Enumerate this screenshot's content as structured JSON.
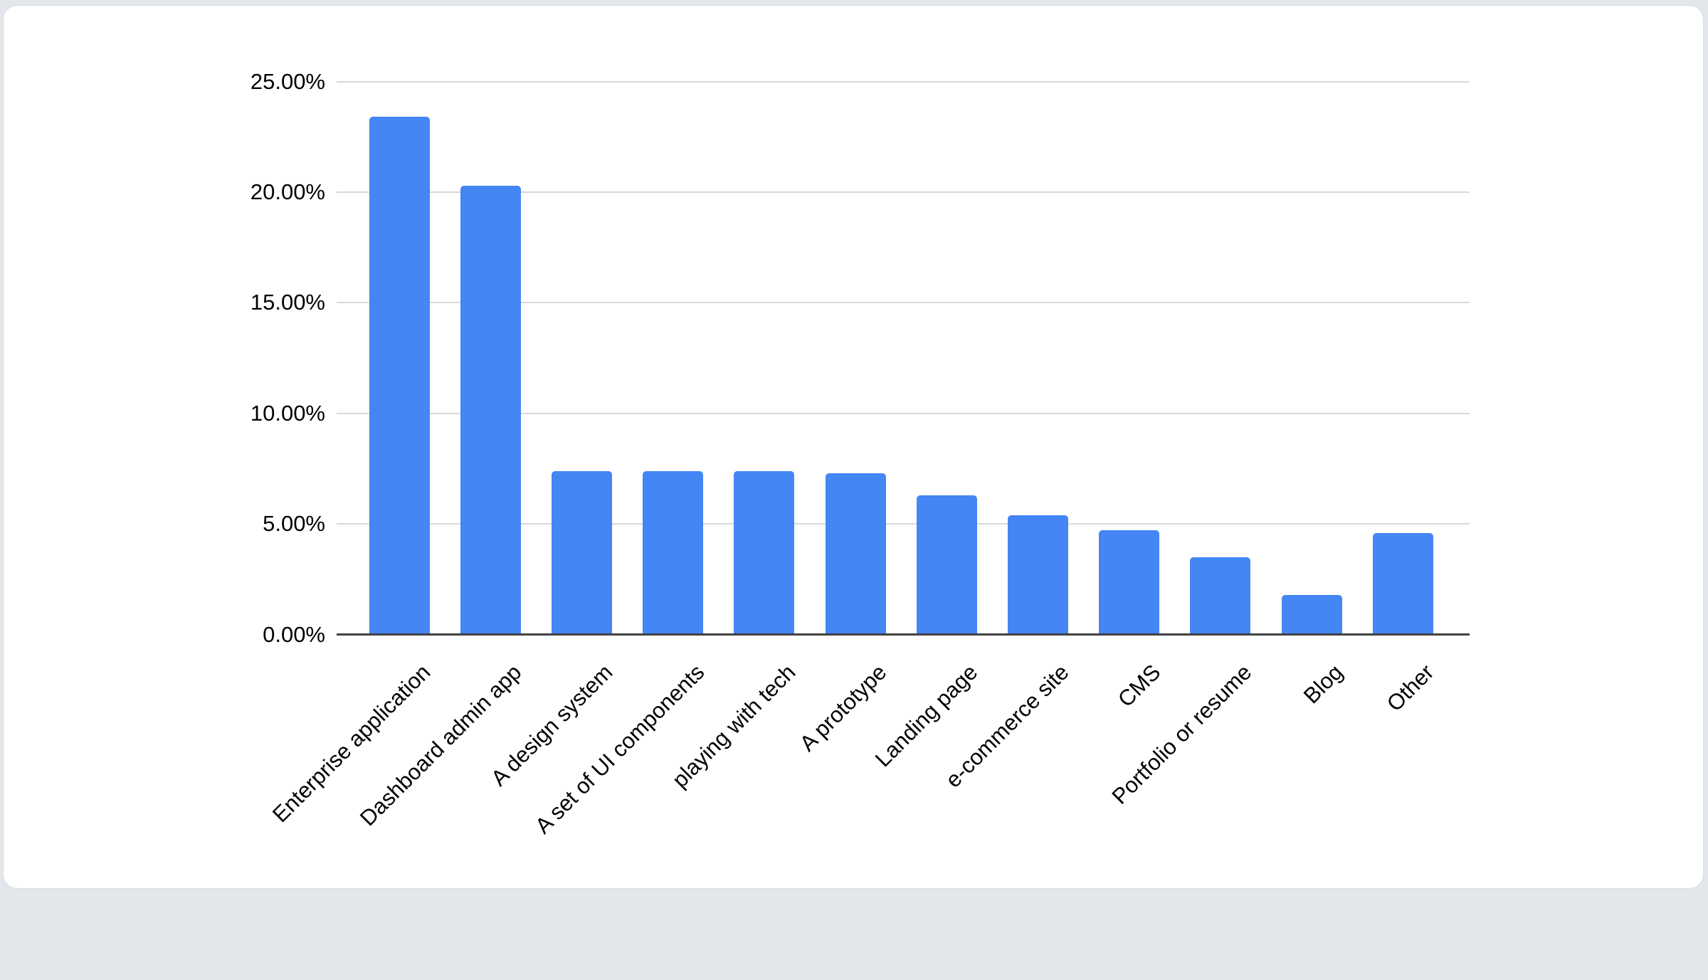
{
  "chart_data": {
    "type": "bar",
    "title": "",
    "xlabel": "",
    "ylabel": "",
    "categories": [
      "Enterprise application",
      "Dashboard admin app",
      "A design system",
      "A set of UI components",
      "playing with tech",
      "A prototype",
      "Landing page",
      "e-commerce site",
      "CMS",
      "Portfolio or resume",
      "Blog",
      "Other"
    ],
    "values": [
      23.4,
      20.3,
      7.4,
      7.4,
      7.4,
      7.3,
      6.3,
      5.4,
      4.7,
      3.5,
      1.8,
      4.6
    ],
    "value_unit": "%",
    "y_axis": {
      "min": 0,
      "max": 25,
      "step": 5,
      "tick_labels": [
        "0.00%",
        "5.00%",
        "10.00%",
        "15.00%",
        "20.00%",
        "25.00%"
      ]
    },
    "grid": true,
    "legend": "none",
    "x_label_rotation_deg": -45
  },
  "colors": {
    "bar": "#4386f4",
    "gridline": "#d9d9d9",
    "axis_line": "#424242",
    "text": "#000000",
    "card_bg": "#ffffff",
    "card_border": "#d8dbdf",
    "page_bg": "#e3e6ea"
  }
}
